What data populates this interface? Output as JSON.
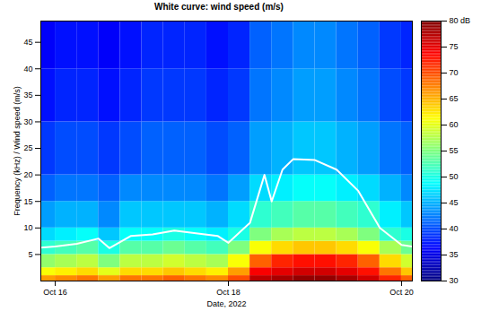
{
  "chart_data": {
    "type": "heatmap",
    "title": "White curve: wind speed (m/s)",
    "x_label": "Date, 2022",
    "y_label": "Frequency (kHz) / Wind speed (m/s)",
    "xlim": [
      "2022-10-15T20:00",
      "2022-10-20T03:00"
    ],
    "xticks": [
      {
        "value": "2022-10-16T00:00",
        "label": "Oct 16"
      },
      {
        "value": "2022-10-18T00:00",
        "label": "Oct 18"
      },
      {
        "value": "2022-10-20T00:00",
        "label": "Oct 20"
      }
    ],
    "ylim": [
      0,
      49
    ],
    "yticks": [
      5,
      10,
      15,
      20,
      25,
      30,
      35,
      40,
      45
    ],
    "time_bins": [
      "2022-10-15T20:00",
      "2022-10-16T00:00",
      "2022-10-16T06:00",
      "2022-10-16T12:00",
      "2022-10-16T18:00",
      "2022-10-17T00:00",
      "2022-10-17T06:00",
      "2022-10-17T12:00",
      "2022-10-17T18:00",
      "2022-10-18T00:00",
      "2022-10-18T06:00",
      "2022-10-18T12:00",
      "2022-10-18T18:00",
      "2022-10-19T00:00",
      "2022-10-19T06:00",
      "2022-10-19T12:00",
      "2022-10-19T18:00",
      "2022-10-20T00:00",
      "2022-10-20T03:00"
    ],
    "freq_bins": [
      0,
      1,
      2.5,
      5,
      7.5,
      10,
      15,
      20,
      30,
      40,
      49
    ],
    "cells": [
      [
        66,
        61,
        56,
        51,
        47,
        44,
        41,
        39,
        37,
        36
      ],
      [
        67,
        62,
        57,
        52,
        48,
        45,
        42,
        40,
        38,
        37
      ],
      [
        68,
        63,
        58,
        53,
        49,
        45,
        42,
        40,
        38,
        37
      ],
      [
        66,
        60,
        55,
        50,
        46,
        43,
        41,
        39,
        37,
        36
      ],
      [
        68,
        63,
        58,
        53,
        49,
        46,
        43,
        40,
        38,
        37
      ],
      [
        68,
        63,
        58,
        53,
        49,
        46,
        43,
        41,
        39,
        38
      ],
      [
        69,
        64,
        59,
        54,
        50,
        46,
        43,
        41,
        39,
        38
      ],
      [
        68,
        63,
        58,
        53,
        49,
        46,
        43,
        41,
        39,
        38
      ],
      [
        67,
        62,
        57,
        52,
        48,
        45,
        42,
        40,
        38,
        37
      ],
      [
        70,
        66,
        61,
        55,
        50,
        47,
        44,
        41,
        39,
        38
      ],
      [
        77,
        74,
        69,
        61,
        55,
        51,
        47,
        44,
        42,
        41
      ],
      [
        78,
        75,
        72,
        63,
        57,
        52,
        48,
        45,
        43,
        42
      ],
      [
        79,
        76,
        73,
        64,
        58,
        53,
        49,
        46,
        44,
        43
      ],
      [
        79,
        76,
        73,
        64,
        58,
        53,
        49,
        46,
        44,
        43
      ],
      [
        78,
        75,
        72,
        63,
        57,
        52,
        48,
        45,
        43,
        42
      ],
      [
        76,
        73,
        69,
        61,
        55,
        51,
        47,
        44,
        42,
        41
      ],
      [
        72,
        68,
        63,
        57,
        51,
        48,
        45,
        42,
        40,
        39
      ],
      [
        69,
        64,
        59,
        54,
        50,
        46,
        43,
        41,
        39,
        38
      ]
    ],
    "colorbar": {
      "range": [
        30,
        80
      ],
      "ticks": [
        30,
        35,
        40,
        45,
        50,
        55,
        60,
        65,
        70,
        75,
        {
          "value": 80,
          "label": "80 dB"
        }
      ]
    },
    "series": [
      {
        "type": "line",
        "color": "#ffffff",
        "x": [
          "2022-10-15T20:00",
          "2022-10-16T00:00",
          "2022-10-16T06:00",
          "2022-10-16T12:00",
          "2022-10-16T15:00",
          "2022-10-16T21:00",
          "2022-10-17T03:00",
          "2022-10-17T09:00",
          "2022-10-17T15:00",
          "2022-10-17T21:00",
          "2022-10-18T00:00",
          "2022-10-18T06:00",
          "2022-10-18T10:00",
          "2022-10-18T12:00",
          "2022-10-18T15:00",
          "2022-10-18T18:00",
          "2022-10-19T00:00",
          "2022-10-19T06:00",
          "2022-10-19T12:00",
          "2022-10-19T18:00",
          "2022-10-20T00:00",
          "2022-10-20T03:00"
        ],
        "values": [
          6.3,
          6.5,
          7.0,
          8.0,
          6.2,
          8.5,
          8.8,
          9.5,
          9.0,
          8.5,
          7.2,
          11,
          20,
          15,
          21,
          23,
          22.8,
          21,
          17,
          10,
          6.8,
          6.5
        ]
      }
    ]
  }
}
